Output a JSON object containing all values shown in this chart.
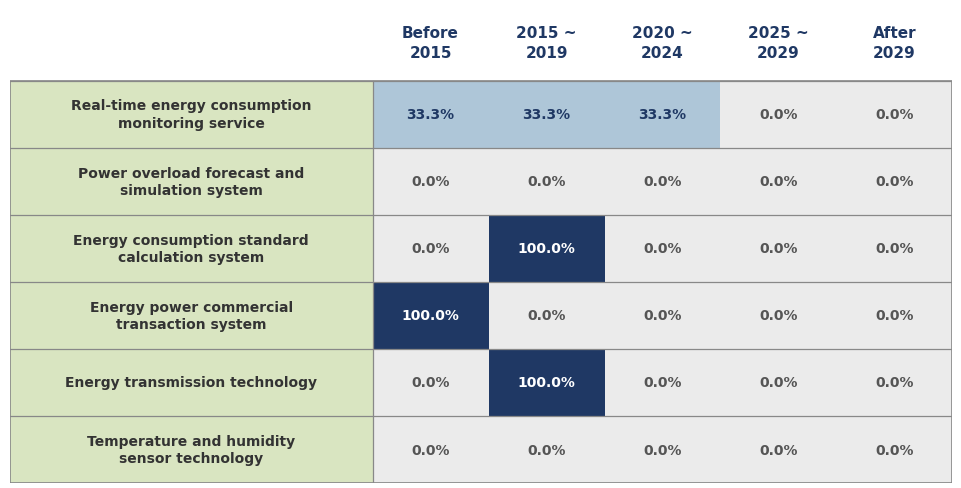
{
  "col_headers": [
    "Before\n2015",
    "2015 ~\n2019",
    "2020 ~\n2024",
    "2025 ~\n2029",
    "After\n2029"
  ],
  "row_labels": [
    "Real-time energy consumption\nmonitoring service",
    "Power overload forecast and\nsimulation system",
    "Energy consumption standard\ncalculation system",
    "Energy power commercial\ntransaction system",
    "Energy transmission technology",
    "Temperature and humidity\nsensor technology"
  ],
  "values": [
    [
      33.3,
      33.3,
      33.3,
      0.0,
      0.0
    ],
    [
      0.0,
      0.0,
      0.0,
      0.0,
      0.0
    ],
    [
      0.0,
      100.0,
      0.0,
      0.0,
      0.0
    ],
    [
      100.0,
      0.0,
      0.0,
      0.0,
      0.0
    ],
    [
      0.0,
      100.0,
      0.0,
      0.0,
      0.0
    ],
    [
      0.0,
      0.0,
      0.0,
      0.0,
      0.0
    ]
  ],
  "row_label_bg": "#d9e5c1",
  "header_text_color": "#1f3864",
  "cell_bg_default": "#ebebeb",
  "cell_bg_light_blue": "#aec6d8",
  "cell_bg_dark_blue": "#1f3864",
  "cell_text_dark": "#555555",
  "cell_text_light": "#ffffff",
  "row_line_color": "#888888",
  "outer_border_color": "#888888",
  "figure_bg": "#ffffff",
  "col_header_fontsize": 11,
  "row_label_fontsize": 10,
  "cell_fontsize": 10,
  "figsize": [
    9.62,
    4.89
  ],
  "dpi": 100
}
